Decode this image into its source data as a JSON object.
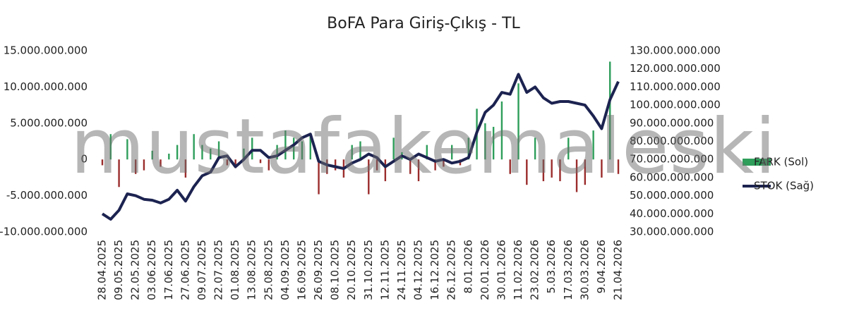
{
  "chart_data": {
    "type": "bar-line",
    "title": "BoFA Para Giriş-Çıkış - TL",
    "watermark": "mustafakemaleski",
    "categories": [
      "28.04.2025",
      null,
      "09.05.2025",
      null,
      "22.05.2025",
      null,
      "03.06.2025",
      null,
      "17.06.2025",
      null,
      "27.06.2025",
      null,
      "09.07.2025",
      null,
      "22.07.2025",
      null,
      "01.08.2025",
      null,
      "13.08.2025",
      null,
      "25.08.2025",
      null,
      "04.09.2025",
      null,
      "16.09.2025",
      null,
      "26.09.2025",
      null,
      "08.10.2025",
      null,
      "20.10.2025",
      null,
      "31.10.2025",
      null,
      "12.11.2025",
      null,
      "24.11.2025",
      null,
      "04.12.2025",
      null,
      "16.12.2025",
      null,
      "26.12.2025",
      null,
      "8.01.2026",
      null,
      "20.01.2026",
      null,
      "30.01.2026",
      null,
      "11.02.2026",
      null,
      "23.02.2026",
      null,
      "5.03.2026",
      null,
      "17.03.2026",
      null,
      "30.03.2026",
      null,
      "9.04.2026",
      null,
      "21.04.2026"
    ],
    "series": [
      {
        "name": "FARK (Sol)",
        "type": "bar",
        "axis": "y",
        "color": "#2e9e5a",
        "negative_color": "#9b2c2c",
        "values": [
          -800000000,
          3500000000,
          -3800000000,
          2800000000,
          -2000000000,
          -1500000000,
          1200000000,
          -1000000000,
          800000000,
          2000000000,
          -2500000000,
          3500000000,
          2000000000,
          1500000000,
          2500000000,
          -800000000,
          -1200000000,
          1500000000,
          3000000000,
          -500000000,
          -1500000000,
          2000000000,
          4000000000,
          3000000000,
          2500000000,
          3500000000,
          -4800000000,
          -2000000000,
          -1500000000,
          -2500000000,
          2000000000,
          2500000000,
          -4800000000,
          -1500000000,
          -3000000000,
          3000000000,
          1000000000,
          -2000000000,
          -3000000000,
          2000000000,
          -1500000000,
          -1000000000,
          2000000000,
          -800000000,
          3000000000,
          7000000000,
          5000000000,
          4500000000,
          8000000000,
          -2000000000,
          10500000000,
          -3500000000,
          3000000000,
          -3000000000,
          -2500000000,
          -3000000000,
          3000000000,
          -4500000000,
          -3500000000,
          4000000000,
          -2500000000,
          13500000000,
          -2000000000
        ]
      },
      {
        "name": "STOK (Sağ)",
        "type": "line",
        "axis": "y2",
        "color": "#1c2350",
        "values": [
          40000000000,
          37000000000,
          42000000000,
          51000000000,
          50000000000,
          48000000000,
          47500000000,
          46000000000,
          48000000000,
          53000000000,
          47000000000,
          55000000000,
          61000000000,
          63000000000,
          71000000000,
          72000000000,
          66000000000,
          70000000000,
          75000000000,
          75000000000,
          71000000000,
          72000000000,
          75000000000,
          78000000000,
          82000000000,
          84000000000,
          69000000000,
          67000000000,
          66000000000,
          65000000000,
          68000000000,
          70000000000,
          73000000000,
          71000000000,
          66000000000,
          69000000000,
          72000000000,
          70000000000,
          73000000000,
          71000000000,
          69000000000,
          70000000000,
          68000000000,
          69000000000,
          71000000000,
          85000000000,
          96000000000,
          100000000000,
          107000000000,
          106000000000,
          117000000000,
          107000000000,
          110000000000,
          104000000000,
          101000000000,
          102000000000,
          102000000000,
          101000000000,
          100000000000,
          94000000000,
          87000000000,
          103000000000,
          113000000000
        ]
      }
    ],
    "ylim": [
      -10000000000,
      15000000000
    ],
    "yticks": [
      {
        "value": -10000000000,
        "label": "-10.000.000.000"
      },
      {
        "value": -5000000000,
        "label": "-5.000.000.000"
      },
      0,
      {
        "value": 5000000000,
        "label": "5.000.000.000"
      },
      {
        "value": 10000000000,
        "label": "10.000.000.000"
      },
      {
        "value": 15000000000,
        "label": "15.000.000.000"
      }
    ],
    "y2lim": [
      30000000000,
      130000000000
    ],
    "y2ticks": [
      {
        "value": 30000000000,
        "label": "30.000.000.000"
      },
      {
        "value": 40000000000,
        "label": "40.000.000.000"
      },
      {
        "value": 50000000000,
        "label": "50.000.000.000"
      },
      {
        "value": 60000000000,
        "label": "60.000.000.000"
      },
      {
        "value": 70000000000,
        "label": "70.000.000.000"
      },
      {
        "value": 80000000000,
        "label": "80.000.000.000"
      },
      {
        "value": 90000000000,
        "label": "90.000.000.000"
      },
      {
        "value": 100000000000,
        "label": "100.000.000.000"
      },
      {
        "value": 110000000000,
        "label": "110.000.000.000"
      },
      {
        "value": 120000000000,
        "label": "120.000.000.000"
      },
      {
        "value": 130000000000,
        "label": "130.000.000.000"
      }
    ],
    "legend": "right"
  }
}
